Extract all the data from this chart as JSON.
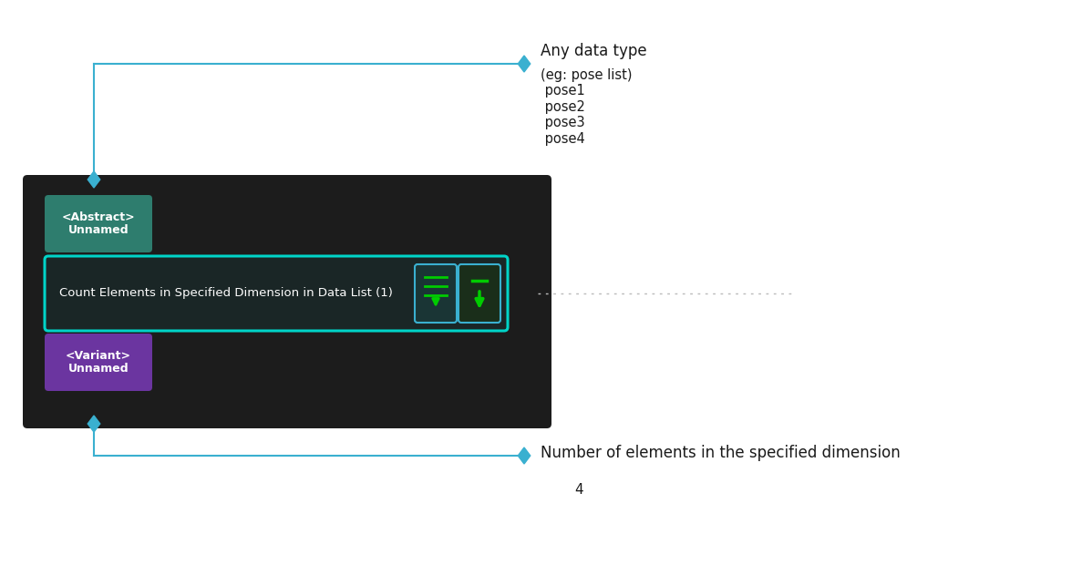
{
  "bg_color": "#ffffff",
  "node_bg": "#1c1c1c",
  "abstract_label": "<Abstract>\nUnnamed",
  "abstract_bg": "#2e7d6e",
  "center_box_label": "Count Elements in Specified Dimension in Data List (1)",
  "center_box_border": "#00d4c8",
  "center_box_bg": "#1a2626",
  "variant_label": "<Variant>\nUnnamed",
  "variant_bg": "#6b35a0",
  "input_line_color": "#3ab0d0",
  "input_label_title": "Any data type",
  "input_label_sub": "(eg: pose list)\n pose1\n pose2\n pose3\n pose4",
  "output_label_title": "Number of elements in the specified dimension",
  "output_label_sub": "4",
  "icon_box1_color": "#1a3535",
  "icon_box2_color": "#1a2e1a",
  "dotted_line_color": "#bbbbbb",
  "font_color_dark": "#1a1a1a"
}
